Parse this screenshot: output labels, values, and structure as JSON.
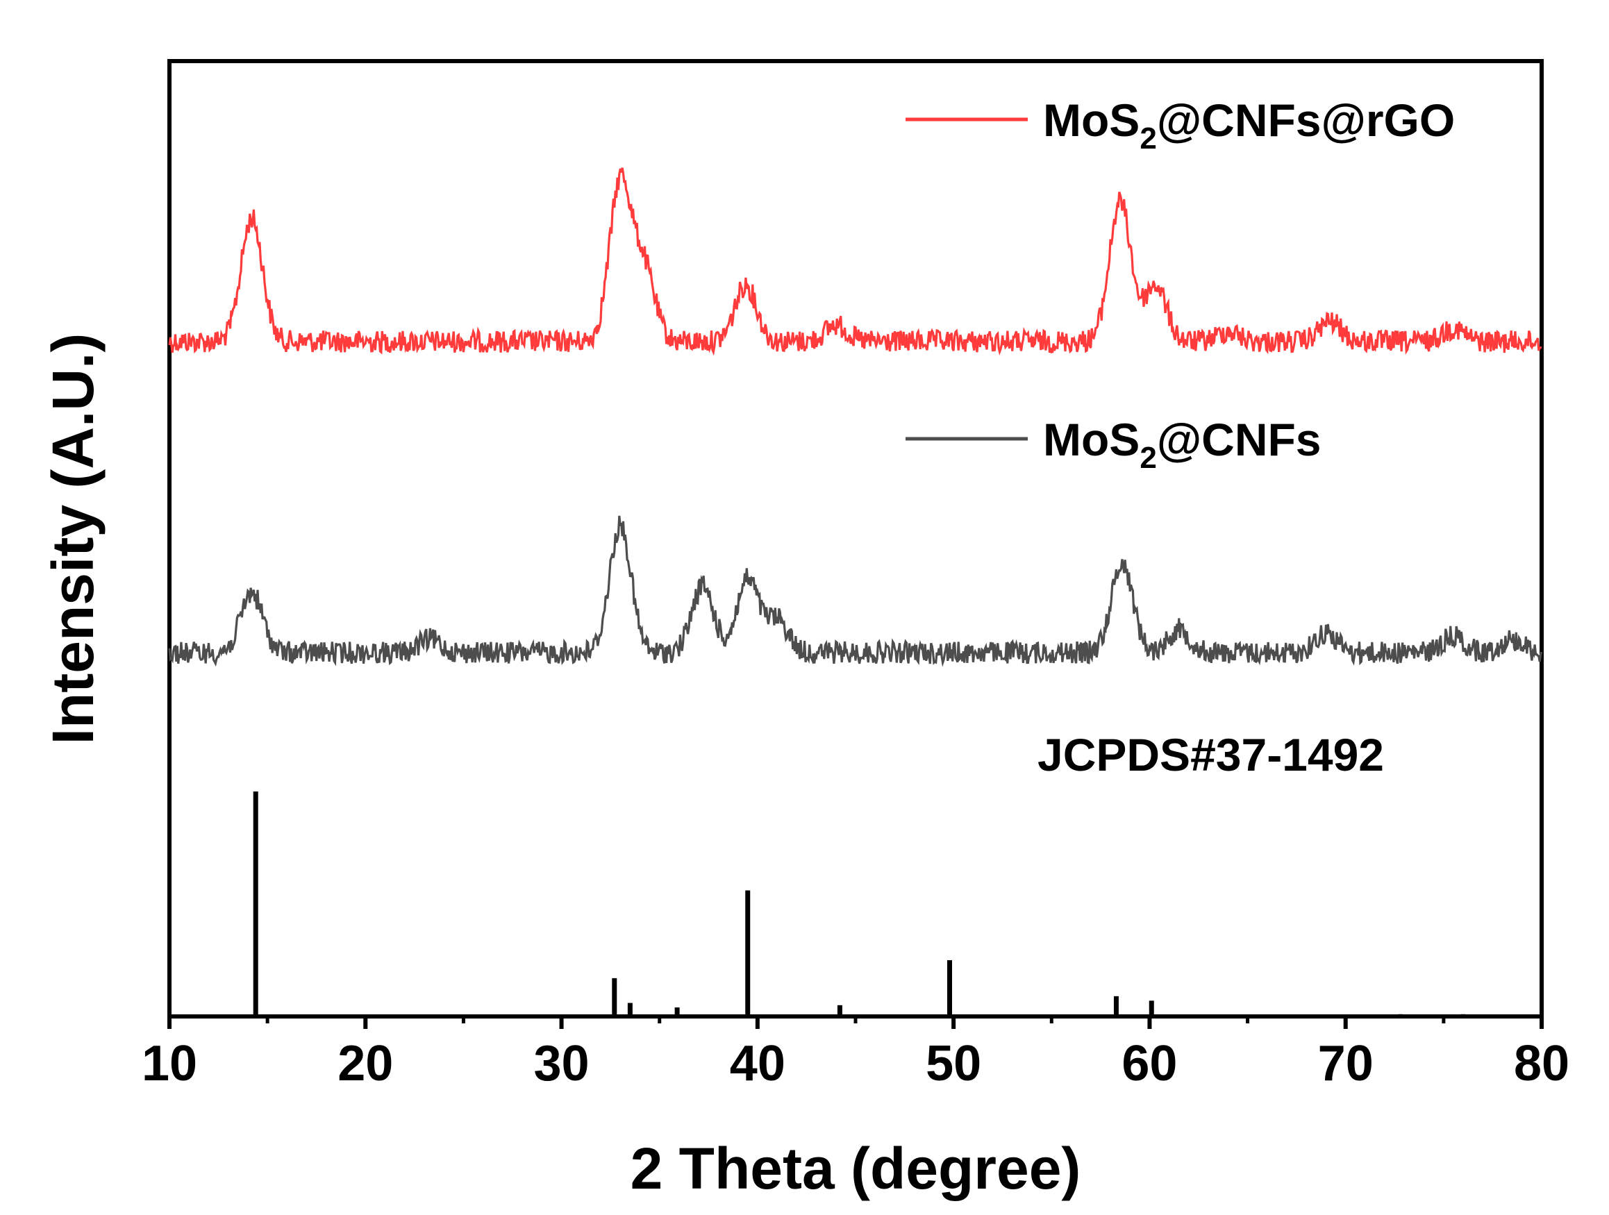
{
  "chart_data": {
    "type": "line",
    "xlabel": "2 Theta (degree)",
    "ylabel": "Intensity (A.U.)",
    "xlim": [
      10,
      80
    ],
    "x_ticks": [
      "10",
      "20",
      "30",
      "40",
      "50",
      "60",
      "70",
      "80"
    ],
    "y_ticks": "none",
    "grid": false,
    "legend": "top-right",
    "series": [
      {
        "name": "MoS2@CNFs@rGO",
        "label_main": "MoS",
        "label_sub": "2",
        "label_rest": "@CNFs@rGO",
        "color": "#ff3b3b",
        "baseline": 1.0,
        "peaks": [
          {
            "x": 14.2,
            "height": 0.37
          },
          {
            "x": 33.0,
            "height": 0.48
          },
          {
            "x": 34.2,
            "height": 0.22
          },
          {
            "x": 39.4,
            "height": 0.17
          },
          {
            "x": 44.0,
            "height": 0.05
          },
          {
            "x": 58.5,
            "height": 0.42
          },
          {
            "x": 60.3,
            "height": 0.17
          },
          {
            "x": 64.0,
            "height": 0.03
          },
          {
            "x": 69.2,
            "height": 0.06
          },
          {
            "x": 75.5,
            "height": 0.04
          }
        ]
      },
      {
        "name": "MoS2@CNFs",
        "label_main": "MoS",
        "label_sub": "2",
        "label_rest": "@CNFs",
        "color": "#4d4d4d",
        "baseline": 0.0,
        "peaks": [
          {
            "x": 14.2,
            "height": 0.18
          },
          {
            "x": 23.3,
            "height": 0.04
          },
          {
            "x": 33.0,
            "height": 0.38
          },
          {
            "x": 37.2,
            "height": 0.2
          },
          {
            "x": 39.5,
            "height": 0.22
          },
          {
            "x": 41.0,
            "height": 0.1
          },
          {
            "x": 58.6,
            "height": 0.27
          },
          {
            "x": 61.5,
            "height": 0.07
          },
          {
            "x": 69.0,
            "height": 0.06
          },
          {
            "x": 75.5,
            "height": 0.05
          },
          {
            "x": 78.5,
            "height": 0.04
          }
        ]
      }
    ],
    "reference": {
      "name": "JCPDS#37-1492",
      "color": "#000000",
      "lines": [
        {
          "x": 14.4,
          "intensity": 100
        },
        {
          "x": 32.7,
          "intensity": 17
        },
        {
          "x": 33.5,
          "intensity": 6
        },
        {
          "x": 35.9,
          "intensity": 4
        },
        {
          "x": 39.5,
          "intensity": 56
        },
        {
          "x": 44.2,
          "intensity": 5
        },
        {
          "x": 49.8,
          "intensity": 25
        },
        {
          "x": 58.3,
          "intensity": 9
        },
        {
          "x": 60.1,
          "intensity": 7
        },
        {
          "x": 72.8,
          "intensity": 1
        },
        {
          "x": 76.0,
          "intensity": 1
        }
      ]
    }
  }
}
